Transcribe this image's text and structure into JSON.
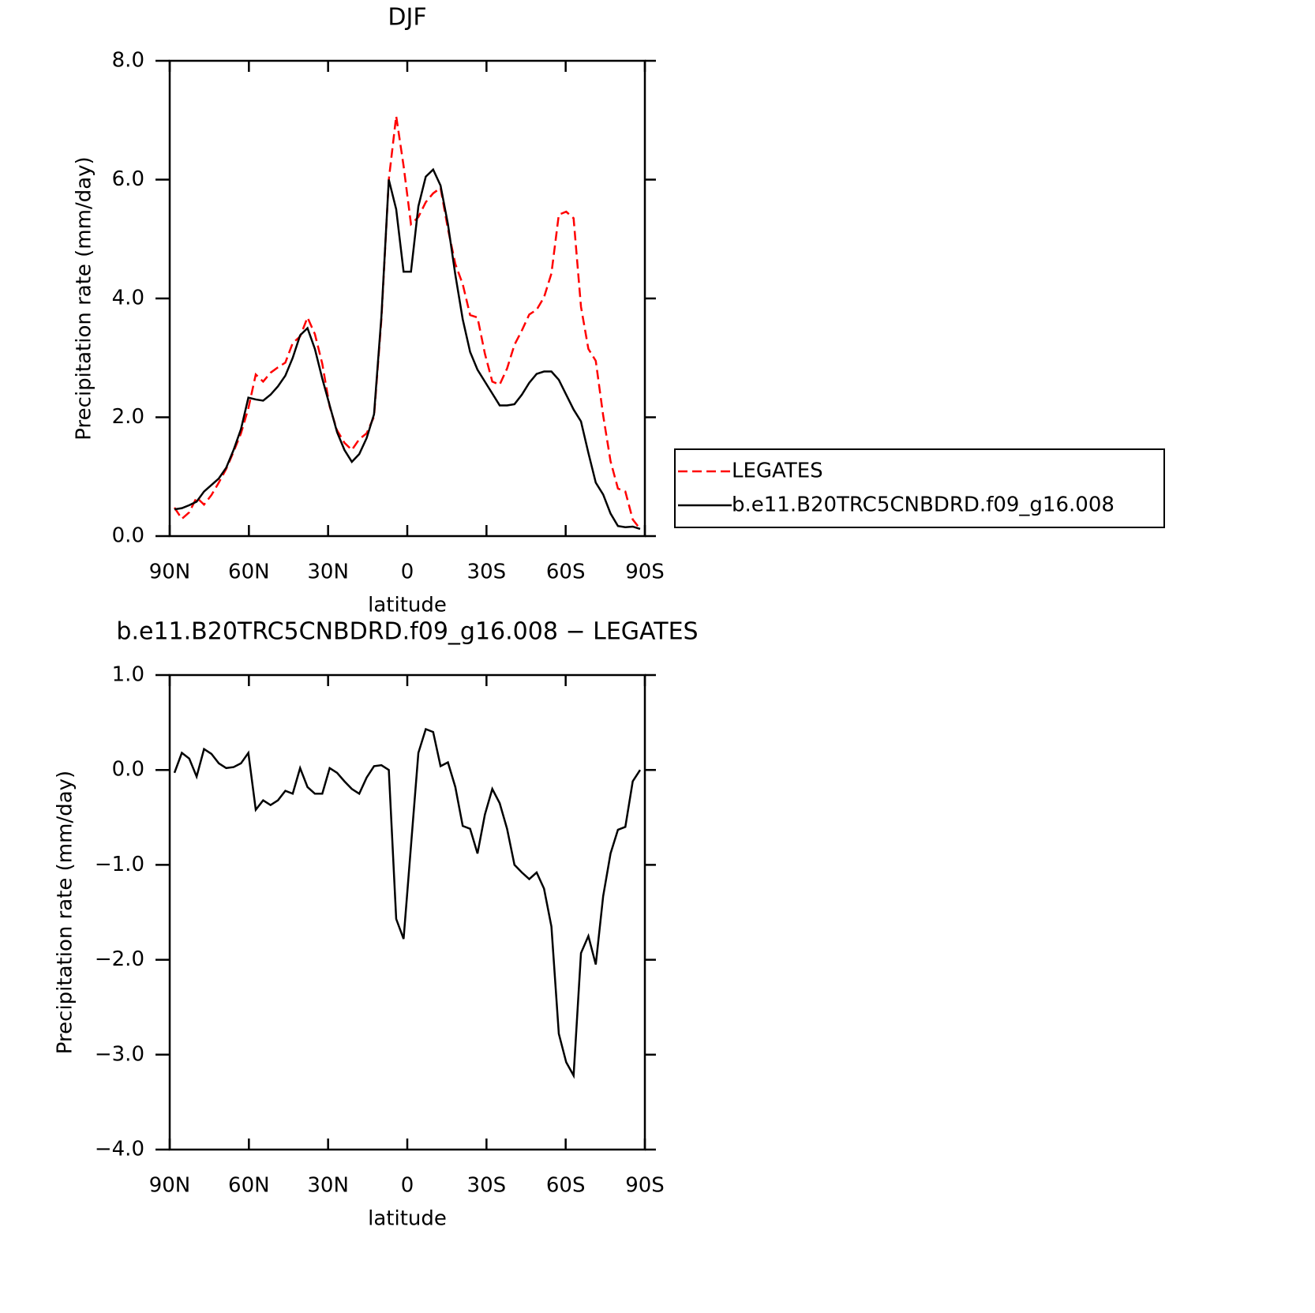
{
  "chart_data": [
    {
      "type": "line",
      "title": "DJF",
      "xlabel": "latitude",
      "ylabel": "Precipitation rate (mm/day)",
      "x": [
        88.2,
        85.4,
        82.6,
        79.8,
        77.0,
        74.2,
        71.4,
        68.6,
        65.8,
        63.0,
        60.2,
        57.4,
        54.6,
        51.8,
        49.0,
        46.2,
        43.4,
        40.6,
        37.8,
        35.0,
        32.2,
        29.4,
        26.6,
        23.8,
        21.0,
        18.2,
        15.4,
        12.6,
        9.8,
        7.0,
        4.2,
        1.4,
        -1.4,
        -4.2,
        -7.0,
        -9.8,
        -12.6,
        -15.4,
        -18.2,
        -21.0,
        -23.8,
        -26.6,
        -29.4,
        -32.2,
        -35.0,
        -37.8,
        -40.6,
        -43.4,
        -46.2,
        -49.0,
        -51.8,
        -54.6,
        -57.4,
        -60.2,
        -63.0,
        -65.8,
        -68.6,
        -71.4,
        -74.2,
        -77.0,
        -79.8,
        -82.6,
        -85.4,
        -88.2
      ],
      "series": [
        {
          "name": "LEGATES",
          "color": "#ff0000",
          "line_style": "dashed",
          "values": [
            0.48,
            0.29,
            0.4,
            0.65,
            0.53,
            0.69,
            0.9,
            1.13,
            1.42,
            1.73,
            2.15,
            2.72,
            2.6,
            2.75,
            2.84,
            2.92,
            3.25,
            3.36,
            3.68,
            3.4,
            2.9,
            2.18,
            1.78,
            1.57,
            1.45,
            1.63,
            1.73,
            2.01,
            3.65,
            6.0,
            7.07,
            6.23,
            5.25,
            5.37,
            5.62,
            5.77,
            5.86,
            5.17,
            4.58,
            4.24,
            3.72,
            3.68,
            3.07,
            2.6,
            2.55,
            2.82,
            3.22,
            3.46,
            3.73,
            3.81,
            4.02,
            4.42,
            5.41,
            5.46,
            5.35,
            3.86,
            3.15,
            2.95,
            2.03,
            1.26,
            0.8,
            0.75,
            0.28,
            0.12
          ]
        },
        {
          "name": "b.e11.B20TRC5CNBDRD.f09_g16.008",
          "color": "#000000",
          "line_style": "solid",
          "values": [
            0.45,
            0.47,
            0.52,
            0.58,
            0.75,
            0.86,
            0.97,
            1.15,
            1.45,
            1.8,
            2.33,
            2.3,
            2.28,
            2.38,
            2.52,
            2.7,
            3.0,
            3.38,
            3.5,
            3.15,
            2.65,
            2.2,
            1.75,
            1.45,
            1.25,
            1.38,
            1.65,
            2.05,
            3.7,
            6.0,
            5.5,
            4.45,
            4.45,
            5.55,
            6.05,
            6.17,
            5.9,
            5.25,
            4.4,
            3.65,
            3.1,
            2.8,
            2.6,
            2.4,
            2.2,
            2.2,
            2.22,
            2.38,
            2.58,
            2.73,
            2.77,
            2.77,
            2.63,
            2.38,
            2.13,
            1.93,
            1.4,
            0.9,
            0.7,
            0.38,
            0.17,
            0.15,
            0.16,
            0.12
          ]
        }
      ],
      "xlim": [
        90,
        -90
      ],
      "xticks": [
        {
          "value": 90,
          "label": "90N"
        },
        {
          "value": 60,
          "label": "60N"
        },
        {
          "value": 30,
          "label": "30N"
        },
        0,
        {
          "value": -30,
          "label": "30S"
        },
        {
          "value": -60,
          "label": "60S"
        },
        {
          "value": -90,
          "label": "90S"
        }
      ],
      "ylim": [
        0,
        8
      ],
      "yticks": [
        {
          "value": 0,
          "label": "0.0"
        },
        {
          "value": 2,
          "label": "2.0"
        },
        {
          "value": 4,
          "label": "4.0"
        },
        {
          "value": 6,
          "label": "6.0"
        },
        {
          "value": 8,
          "label": "8.0"
        }
      ],
      "legend": "right"
    },
    {
      "type": "line",
      "title": "b.e11.B20TRC5CNBDRD.f09_g16.008 − LEGATES",
      "xlabel": "latitude",
      "ylabel": "Precipitation rate (mm/day)",
      "x": [
        88.2,
        85.4,
        82.6,
        79.8,
        77.0,
        74.2,
        71.4,
        68.6,
        65.8,
        63.0,
        60.2,
        57.4,
        54.6,
        51.8,
        49.0,
        46.2,
        43.4,
        40.6,
        37.8,
        35.0,
        32.2,
        29.4,
        26.6,
        23.8,
        21.0,
        18.2,
        15.4,
        12.6,
        9.8,
        7.0,
        4.2,
        1.4,
        -1.4,
        -4.2,
        -7.0,
        -9.8,
        -12.6,
        -15.4,
        -18.2,
        -21.0,
        -23.8,
        -26.6,
        -29.4,
        -32.2,
        -35.0,
        -37.8,
        -40.6,
        -43.4,
        -46.2,
        -49.0,
        -51.8,
        -54.6,
        -57.4,
        -60.2,
        -63.0,
        -65.8,
        -68.6,
        -71.4,
        -74.2,
        -77.0,
        -79.8,
        -82.6,
        -85.4,
        -88.2
      ],
      "series": [
        {
          "color": "#000000",
          "line_style": "solid",
          "values": [
            -0.03,
            0.18,
            0.12,
            -0.07,
            0.22,
            0.17,
            0.07,
            0.02,
            0.03,
            0.07,
            0.18,
            -0.42,
            -0.32,
            -0.37,
            -0.32,
            -0.22,
            -0.25,
            0.02,
            -0.18,
            -0.25,
            -0.25,
            0.02,
            -0.03,
            -0.12,
            -0.2,
            -0.25,
            -0.08,
            0.04,
            0.05,
            0.0,
            -1.57,
            -1.78,
            -0.8,
            0.18,
            0.43,
            0.4,
            0.04,
            0.08,
            -0.18,
            -0.59,
            -0.62,
            -0.88,
            -0.47,
            -0.2,
            -0.35,
            -0.62,
            -1.0,
            -1.08,
            -1.15,
            -1.08,
            -1.25,
            -1.65,
            -2.78,
            -3.08,
            -3.22,
            -1.93,
            -1.75,
            -2.05,
            -1.33,
            -0.88,
            -0.63,
            -0.6,
            -0.12,
            0.0
          ]
        }
      ],
      "xlim": [
        90,
        -90
      ],
      "xticks": [
        {
          "value": 90,
          "label": "90N"
        },
        {
          "value": 60,
          "label": "60N"
        },
        {
          "value": 30,
          "label": "30N"
        },
        0,
        {
          "value": -30,
          "label": "30S"
        },
        {
          "value": -60,
          "label": "60S"
        },
        {
          "value": -90,
          "label": "90S"
        }
      ],
      "ylim": [
        -4,
        1
      ],
      "yticks": [
        {
          "value": -4,
          "label": "−4.0"
        },
        {
          "value": -3,
          "label": "−3.0"
        },
        {
          "value": -2,
          "label": "−2.0"
        },
        {
          "value": -1,
          "label": "−1.0"
        },
        {
          "value": 0,
          "label": "0.0"
        },
        {
          "value": 1,
          "label": "1.0"
        }
      ]
    }
  ]
}
